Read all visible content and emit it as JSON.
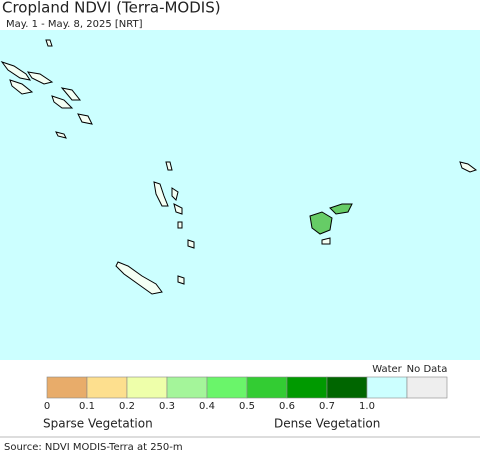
{
  "header": {
    "title": "Cropland NDVI (Terra-MODIS)",
    "subtitle": "May. 1 - May. 8, 2025 [NRT]"
  },
  "map": {
    "water_color": "#ccffff"
  },
  "legend": {
    "bins": [
      {
        "color": "#e8ac6a"
      },
      {
        "color": "#fddf8e"
      },
      {
        "color": "#eeffaa"
      },
      {
        "color": "#a4f59a"
      },
      {
        "color": "#6af56a"
      },
      {
        "color": "#33cc33"
      },
      {
        "color": "#009a00"
      },
      {
        "color": "#006600"
      }
    ],
    "ticks": [
      "0",
      "0.1",
      "0.2",
      "0.3",
      "0.4",
      "0.5",
      "0.6",
      "0.7",
      "1.0"
    ],
    "water": {
      "label": "Water",
      "color": "#ccffff"
    },
    "no_data": {
      "label": "No Data",
      "color": "#eeeeee"
    },
    "low_label": "Sparse Vegetation",
    "high_label": "Dense Vegetation"
  },
  "footer": {
    "source": "Source: NDVI MODIS-Terra at 250-m"
  }
}
